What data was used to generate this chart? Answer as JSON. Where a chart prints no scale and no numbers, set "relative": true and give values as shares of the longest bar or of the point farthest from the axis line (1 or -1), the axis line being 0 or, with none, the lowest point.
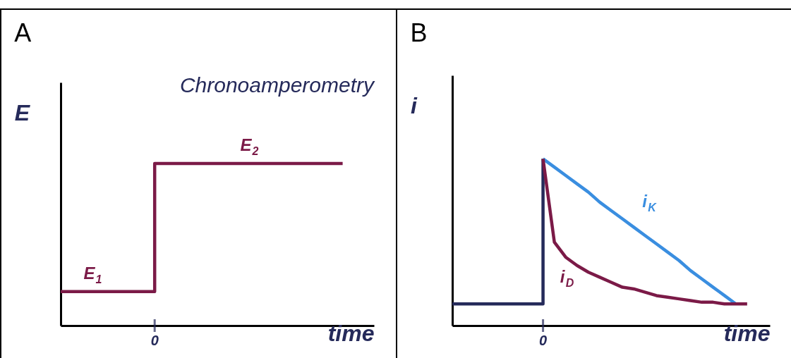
{
  "chart_data": [
    {
      "type": "step",
      "title": "A",
      "xlabel": "time",
      "ylabel": "E",
      "relative": true,
      "categories": [
        null,
        null,
        null,
        null,
        null,
        null,
        null,
        null,
        null,
        null,
        null
      ],
      "series": [
        {
          "color": "#7b1a47",
          "values": [
            0.21,
            0.21,
            0.21,
            1,
            1,
            1,
            1,
            1,
            1,
            1,
            null
          ]
        }
      ],
      "annotations": [
        "Chronoamperometry",
        "0",
        "E$_{1}$",
        "E$_{2}$"
      ]
    },
    {
      "type": "line",
      "title": "B",
      "xlabel": "time",
      "ylabel": "i",
      "relative": true,
      "categories": [
        null,
        null,
        null,
        null,
        null,
        null,
        null,
        null,
        null,
        null,
        null,
        null,
        null,
        null,
        null,
        null,
        null,
        null,
        null,
        null,
        null,
        null,
        null,
        null,
        null,
        null,
        null,
        null,
        null
      ],
      "series": [
        {
          "type": "step",
          "color": "#252a5a",
          "values": [
            0.13,
            0.13,
            0.13,
            0.13,
            0.13,
            0.13,
            0.13,
            0.13,
            1,
            null,
            null,
            null,
            null,
            null,
            null,
            null,
            null,
            null,
            null,
            null,
            null,
            null,
            null,
            null,
            null,
            null,
            null,
            null,
            null
          ]
        },
        {
          "name": "i$_{K}$",
          "color": "#3a8ee0",
          "values": [
            null,
            null,
            null,
            null,
            null,
            null,
            null,
            null,
            1,
            0.95,
            0.9,
            0.85,
            0.8,
            0.74,
            0.69,
            0.64,
            0.59,
            0.54,
            0.49,
            0.44,
            0.39,
            0.33,
            0.28,
            0.23,
            0.18,
            0.13,
            null,
            null,
            null
          ]
        },
        {
          "name": "i$_{D}$",
          "color": "#7b1a47",
          "values": [
            null,
            null,
            null,
            null,
            null,
            null,
            null,
            null,
            1,
            0.5,
            0.41,
            0.36,
            0.32,
            0.29,
            0.26,
            0.23,
            0.22,
            0.2,
            0.18,
            0.17,
            0.16,
            0.15,
            0.14,
            0.14,
            0.13,
            0.13,
            0.13,
            null,
            null
          ]
        }
      ],
      "annotations": [
        "0"
      ]
    }
  ]
}
